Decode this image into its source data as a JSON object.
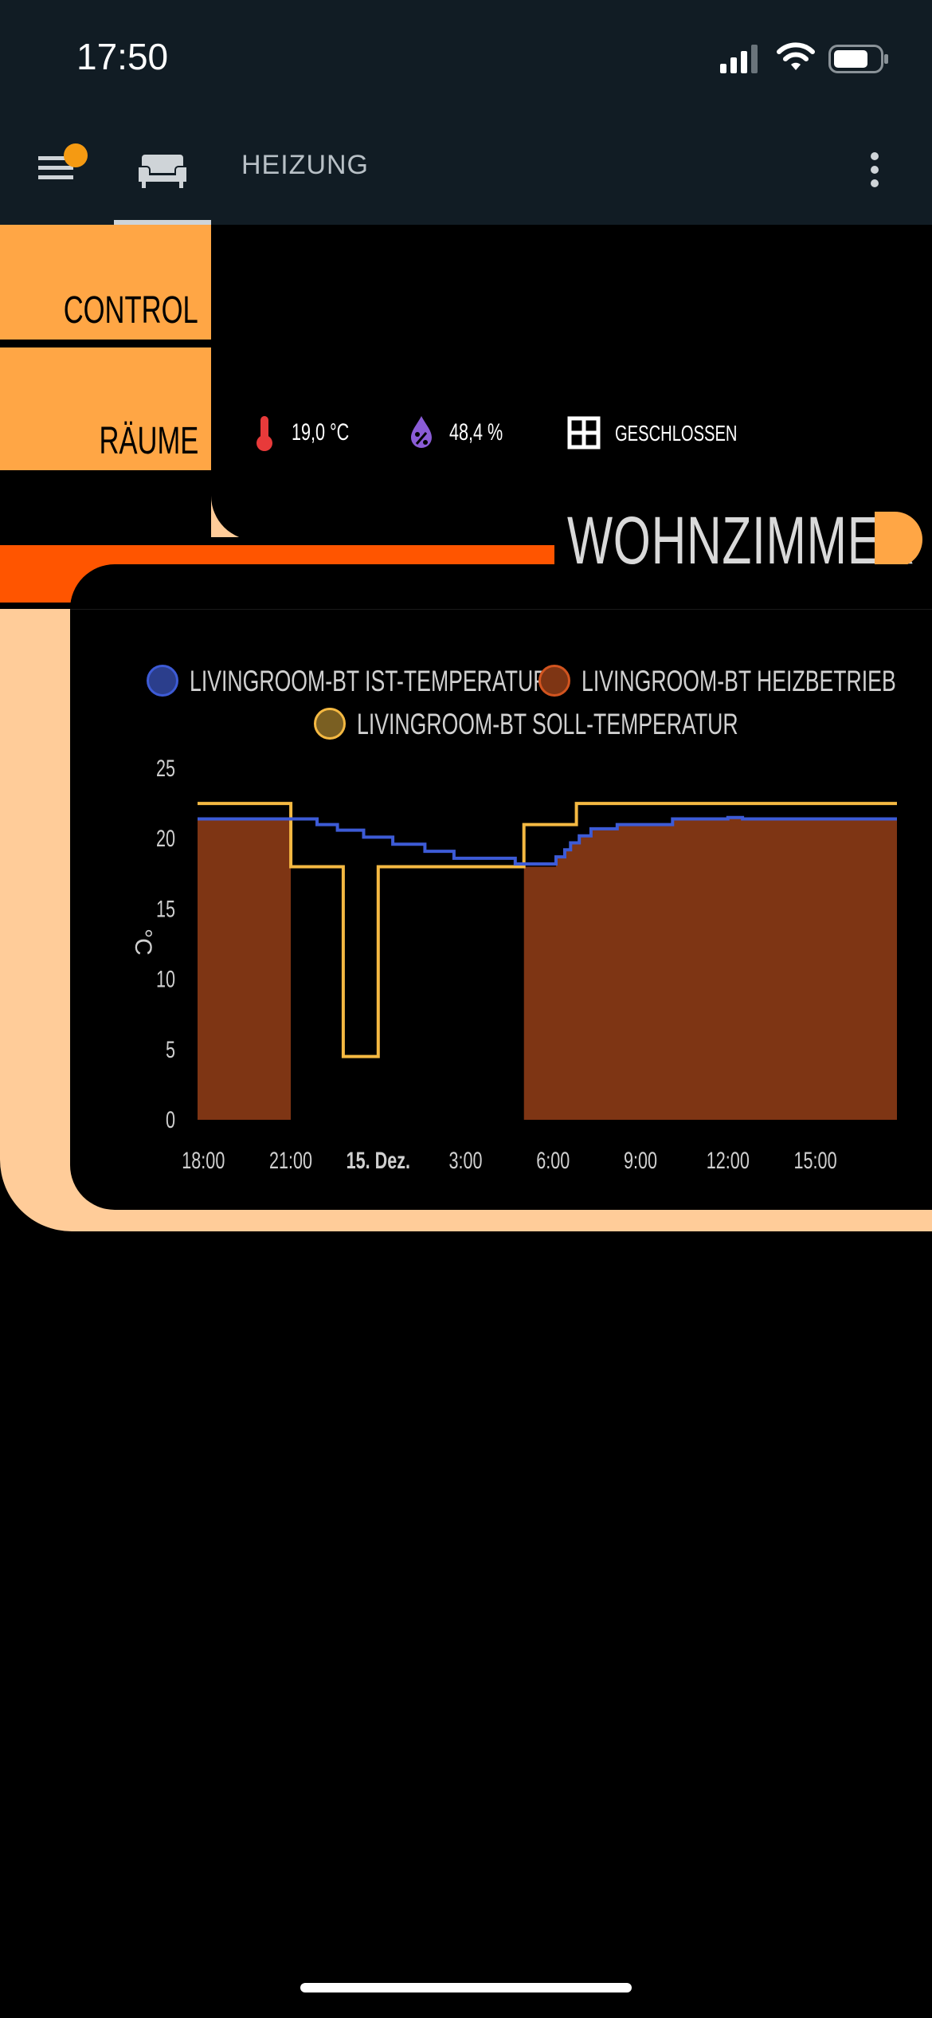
{
  "status_bar": {
    "time": "17:50"
  },
  "header": {
    "title": "HEIZUNG"
  },
  "lcars": {
    "control_label": "CONTROL",
    "rooms_label": "RÄUME",
    "room_title": "WOHNZIMMER"
  },
  "sensors": {
    "temperature": "19,0 °C",
    "humidity": "48,4 %",
    "window": "GESCHLOSSEN"
  },
  "colors": {
    "lcars_orange": "#ffa645",
    "lcars_peach": "#ffcc99",
    "lcars_red": "#ff5500",
    "temp_blue": "#3d5bd6",
    "heating_brown": "#7e3514",
    "setpoint_yellow": "#f5b942"
  },
  "icons": {
    "menu": "hamburger-icon",
    "sofa": "sofa-icon",
    "more": "more-vertical-icon",
    "thermometer": "thermometer-icon",
    "humidity": "water-percent-icon",
    "window": "window-icon"
  },
  "chart_data": {
    "type": "line",
    "ylabel": "°C",
    "ylim": [
      0,
      25
    ],
    "yticks": [
      "0",
      "5",
      "10",
      "15",
      "20",
      "25"
    ],
    "xlim": [
      -0.2,
      23.8
    ],
    "xticks": [
      {
        "x": 0,
        "label": "18:00"
      },
      {
        "x": 3,
        "label": "21:00"
      },
      {
        "x": 6,
        "label": "15. Dez.",
        "bold": true
      },
      {
        "x": 9,
        "label": "3:00"
      },
      {
        "x": 12,
        "label": "6:00"
      },
      {
        "x": 15,
        "label": "9:00"
      },
      {
        "x": 18,
        "label": "12:00"
      },
      {
        "x": 21,
        "label": "15:00"
      }
    ],
    "legend": [
      "LIVINGROOM-BT IST-TEMPERATUR",
      "LIVINGROOM-BT HEIZBETRIEB",
      "LIVINGROOM-BT SOLL-TEMPERATUR"
    ],
    "legend_position": "top",
    "grid": false,
    "series": [
      {
        "name": "LIVINGROOM-BT IST-TEMPERATUR",
        "kind": "step-line",
        "color": "#3d5bd6",
        "points": [
          [
            -0.2,
            21.4
          ],
          [
            3.9,
            21.4
          ],
          [
            3.9,
            21.0
          ],
          [
            4.6,
            21.0
          ],
          [
            4.6,
            20.6
          ],
          [
            5.5,
            20.6
          ],
          [
            5.5,
            20.1
          ],
          [
            6.5,
            20.1
          ],
          [
            6.5,
            19.6
          ],
          [
            7.6,
            19.6
          ],
          [
            7.6,
            19.1
          ],
          [
            8.6,
            19.1
          ],
          [
            8.6,
            18.6
          ],
          [
            10.7,
            18.6
          ],
          [
            10.7,
            18.2
          ],
          [
            12.1,
            18.2
          ],
          [
            12.1,
            18.7
          ],
          [
            12.4,
            18.7
          ],
          [
            12.4,
            19.2
          ],
          [
            12.6,
            19.2
          ],
          [
            12.6,
            19.7
          ],
          [
            12.9,
            19.7
          ],
          [
            12.9,
            20.2
          ],
          [
            13.3,
            20.2
          ],
          [
            13.3,
            20.7
          ],
          [
            14.2,
            20.7
          ],
          [
            14.2,
            21.0
          ],
          [
            16.1,
            21.0
          ],
          [
            16.1,
            21.4
          ],
          [
            18.0,
            21.4
          ],
          [
            18.0,
            21.5
          ],
          [
            18.5,
            21.5
          ],
          [
            18.5,
            21.4
          ],
          [
            23.8,
            21.4
          ]
        ]
      },
      {
        "name": "LIVINGROOM-BT HEIZBETRIEB",
        "kind": "area",
        "color": "#7e3514",
        "segments": [
          {
            "x0": -0.2,
            "x1": 3.0,
            "y": 21.5
          },
          {
            "x0": 11.0,
            "x1": 23.8,
            "y": 18.0
          },
          {
            "x0": 12.1,
            "x1": 23.8,
            "y": 21.4,
            "follows": "IST-TEMPERATUR"
          }
        ]
      },
      {
        "name": "LIVINGROOM-BT SOLL-TEMPERATUR",
        "kind": "step-line",
        "color": "#f5b942",
        "points": [
          [
            -0.2,
            22.5
          ],
          [
            3.0,
            22.5
          ],
          [
            3.0,
            18.0
          ],
          [
            4.8,
            18.0
          ],
          [
            4.8,
            4.5
          ],
          [
            6.0,
            4.5
          ],
          [
            6.0,
            18.0
          ],
          [
            11.0,
            18.0
          ],
          [
            11.0,
            21.0
          ],
          [
            12.8,
            21.0
          ],
          [
            12.8,
            22.5
          ],
          [
            23.8,
            22.5
          ]
        ]
      }
    ]
  }
}
